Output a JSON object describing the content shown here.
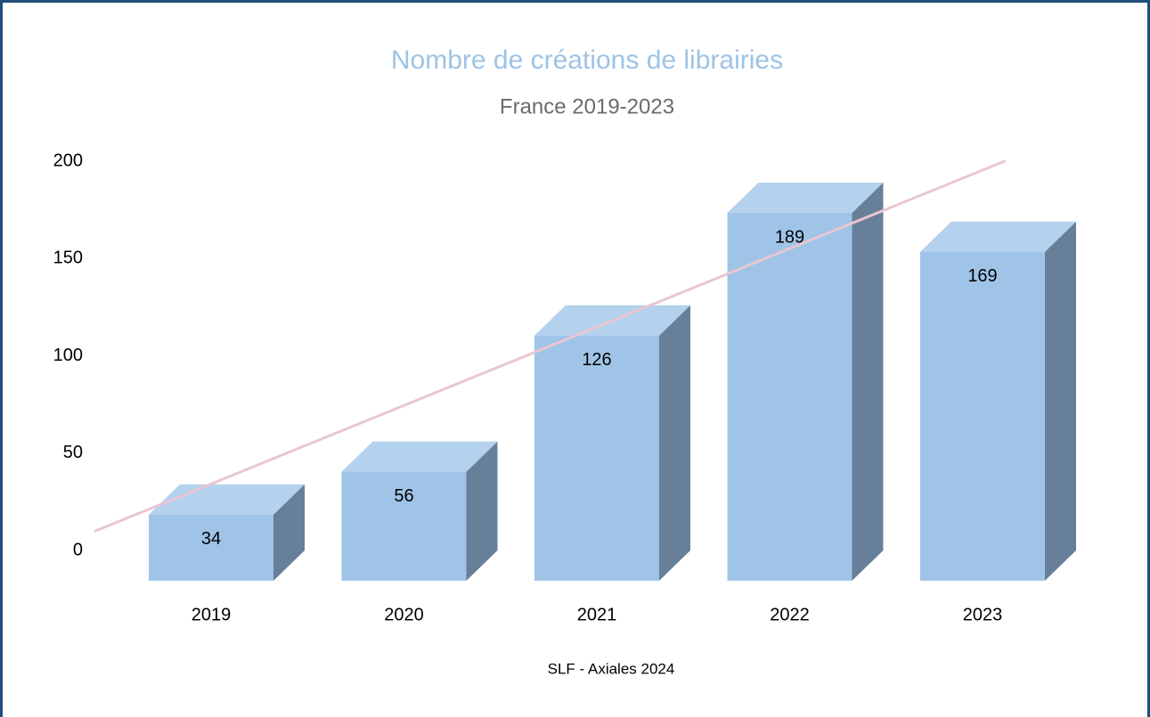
{
  "chart_data": {
    "type": "bar3d",
    "title": "Nombre de créations de librairies",
    "subtitle": "France 2019-2023",
    "source": "SLF - Axiales 2024",
    "categories": [
      "2019",
      "2020",
      "2021",
      "2022",
      "2023"
    ],
    "values": [
      34,
      56,
      126,
      189,
      169
    ],
    "color": "#9fc4e8",
    "ylim": [
      0,
      200
    ],
    "yticks": [
      0,
      50,
      100,
      150,
      200
    ],
    "grid": false,
    "trendline": true,
    "trendline_color": "#e8c6d2"
  }
}
